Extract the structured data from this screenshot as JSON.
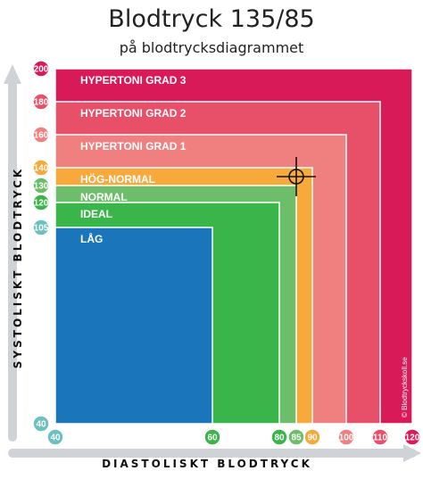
{
  "title": "Blodtryck 135/85",
  "subtitle": "på blodtrycksdiagrammet",
  "credit": "© Blodtryckskoll.se",
  "chart_data": {
    "type": "area",
    "xlabel": "DIASTOLISKT BLODTRYCK",
    "ylabel": "SYSTOLISKT BLODTRYCK",
    "xlim": [
      40,
      120
    ],
    "ylim": [
      40,
      200
    ],
    "x_ticks": [
      {
        "value": 40,
        "color": "#6cc0c0"
      },
      {
        "value": 60,
        "color": "#39b54a"
      },
      {
        "value": 80,
        "color": "#39b54a"
      },
      {
        "value": 85,
        "color": "#6dbe6a"
      },
      {
        "value": 90,
        "color": "#f7a93b"
      },
      {
        "value": 100,
        "color": "#f08080"
      },
      {
        "value": 110,
        "color": "#e8506a"
      },
      {
        "value": 120,
        "color": "#d81b58"
      }
    ],
    "y_ticks": [
      {
        "value": 200,
        "color": "#d81b58"
      },
      {
        "value": 180,
        "color": "#e8506a"
      },
      {
        "value": 160,
        "color": "#f08080"
      },
      {
        "value": 140,
        "color": "#f7a93b"
      },
      {
        "value": 130,
        "color": "#6dbe6a"
      },
      {
        "value": 120,
        "color": "#39b54a"
      },
      {
        "value": 105,
        "color": "#6cc0c0"
      },
      {
        "value": 40,
        "color": "#6cc0c0"
      }
    ],
    "bands": [
      {
        "label": "HYPERTONI GRAD 3",
        "max_diastolic": 120,
        "max_systolic": 200,
        "color": "#d81b58"
      },
      {
        "label": "HYPERTONI GRAD 2",
        "max_diastolic": 110,
        "max_systolic": 180,
        "color": "#e8506a"
      },
      {
        "label": "HYPERTONI GRAD 1",
        "max_diastolic": 100,
        "max_systolic": 160,
        "color": "#f08080"
      },
      {
        "label": "HÖG-NORMAL",
        "max_diastolic": 90,
        "max_systolic": 140,
        "color": "#f7a93b"
      },
      {
        "label": "NORMAL",
        "max_diastolic": 85,
        "max_systolic": 130,
        "color": "#6dbe6a"
      },
      {
        "label": "IDEAL",
        "max_diastolic": 80,
        "max_systolic": 120,
        "color": "#39b54a"
      },
      {
        "label": "LÅG",
        "max_diastolic": 60,
        "max_systolic": 105,
        "color": "#1b75bb"
      }
    ],
    "marker": {
      "diastolic": 85,
      "systolic": 135
    }
  }
}
